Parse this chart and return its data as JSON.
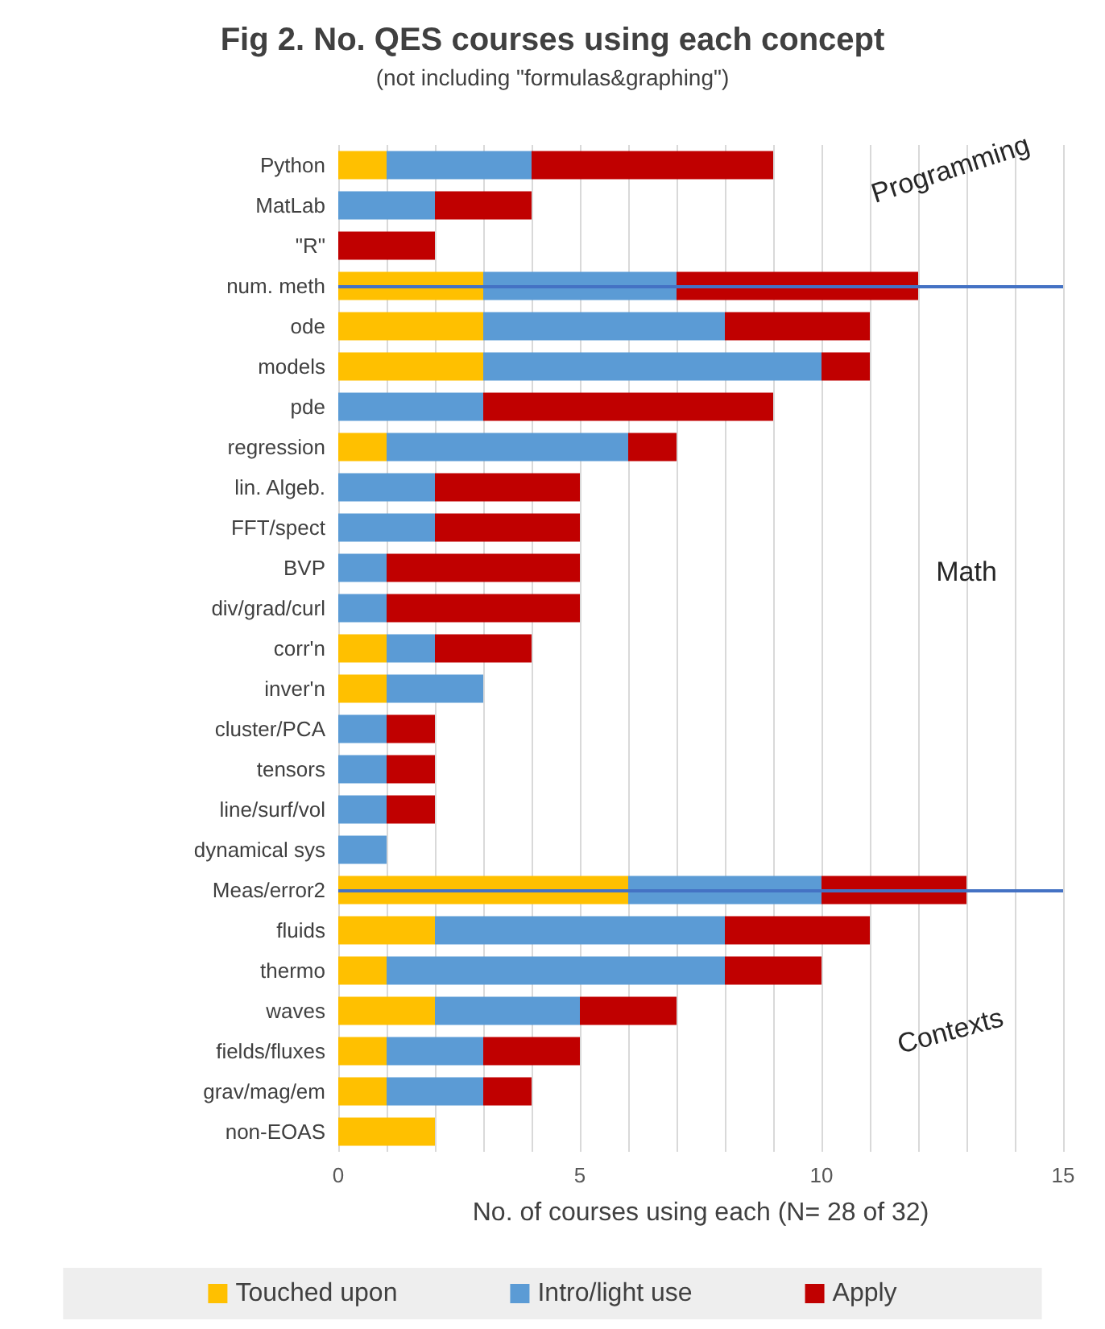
{
  "chart_data": {
    "type": "bar",
    "orientation": "horizontal",
    "stacked": true,
    "title": "Fig 2. No. QES courses using each concept",
    "subtitle": "(not including \"formulas&graphing\")",
    "xlabel": "No. of courses using each (N= 28 of 32)",
    "categories": [
      "Python",
      "MatLab",
      "\"R\"",
      "num. meth",
      "ode",
      "models",
      "pde",
      "regression",
      "lin. Algeb.",
      "FFT/spect",
      "BVP",
      "div/grad/curl",
      "corr'n",
      "inver'n",
      "cluster/PCA",
      "tensors",
      "line/surf/vol",
      "dynamical sys",
      "Meas/error2",
      "fluids",
      "thermo",
      "waves",
      "fields/fluxes",
      "grav/mag/em",
      "non-EOAS"
    ],
    "series": [
      {
        "name": "Touched upon",
        "color": "#ffc000",
        "values": [
          1,
          0,
          0,
          3,
          3,
          3,
          0,
          1,
          0,
          0,
          0,
          0,
          1,
          1,
          0,
          0,
          0,
          0,
          6,
          2,
          1,
          2,
          1,
          1,
          2
        ]
      },
      {
        "name": "Intro/light use",
        "color": "#5b9bd5",
        "values": [
          3,
          2,
          0,
          4,
          5,
          7,
          3,
          5,
          2,
          2,
          1,
          1,
          1,
          2,
          1,
          1,
          1,
          1,
          4,
          6,
          7,
          3,
          2,
          2,
          0
        ]
      },
      {
        "name": "Apply",
        "color": "#c00000",
        "values": [
          5,
          2,
          2,
          5,
          3,
          1,
          6,
          1,
          3,
          3,
          4,
          4,
          2,
          0,
          1,
          1,
          1,
          0,
          3,
          3,
          2,
          2,
          2,
          1,
          0
        ]
      }
    ],
    "xlim": [
      0,
      15
    ],
    "xticks": [
      0,
      {
        "value": 1,
        "label": null
      },
      {
        "value": 2,
        "label": null
      },
      {
        "value": 3,
        "label": null
      },
      {
        "value": 4,
        "label": null
      },
      5,
      {
        "value": 6,
        "label": null
      },
      {
        "value": 7,
        "label": null
      },
      {
        "value": 8,
        "label": null
      },
      {
        "value": 9,
        "label": null
      },
      10,
      {
        "value": 11,
        "label": null
      },
      {
        "value": 12,
        "label": null
      },
      {
        "value": 13,
        "label": null
      },
      {
        "value": 14,
        "label": null
      },
      15
    ],
    "grid": "x",
    "legend": "bottom",
    "ref_lines": [
      {
        "axis": "y",
        "value": "num. meth",
        "color": "#4472c4"
      },
      {
        "axis": "y",
        "value": "Meas/error2",
        "color": "#4472c4"
      }
    ],
    "annotations": [
      "Programming",
      "Math",
      "Contexts"
    ]
  }
}
